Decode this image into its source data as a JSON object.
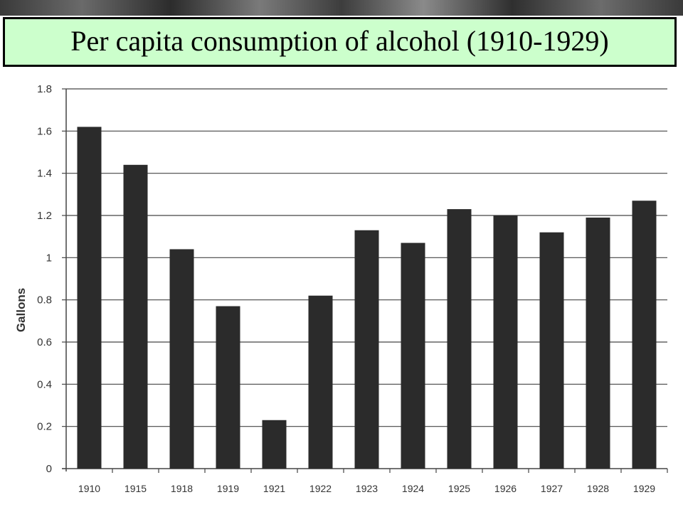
{
  "header": {
    "title": "Per capita consumption of alcohol (1910-1929)"
  },
  "colors": {
    "title_background": "#ccffcc",
    "bar": "#2b2b2b",
    "grid": "#444444"
  },
  "chart_data": {
    "type": "bar",
    "categories": [
      "1910",
      "1915",
      "1918",
      "1919",
      "1921",
      "1922",
      "1923",
      "1924",
      "1925",
      "1926",
      "1927",
      "1928",
      "1929"
    ],
    "values": [
      1.62,
      1.44,
      1.04,
      0.77,
      0.23,
      0.82,
      1.13,
      1.07,
      1.23,
      1.2,
      1.12,
      1.19,
      1.27
    ],
    "title": "Per capita consumption of alcohol (1910-1929)",
    "xlabel": "",
    "ylabel": "Gallons",
    "ylim": [
      0,
      1.8
    ],
    "yticks": [
      "0",
      "0.2",
      "0.4",
      "0.6",
      "0.8",
      "1",
      "1.2",
      "1.4",
      "1.6",
      "1.8"
    ],
    "grid": true,
    "legend": "none"
  }
}
